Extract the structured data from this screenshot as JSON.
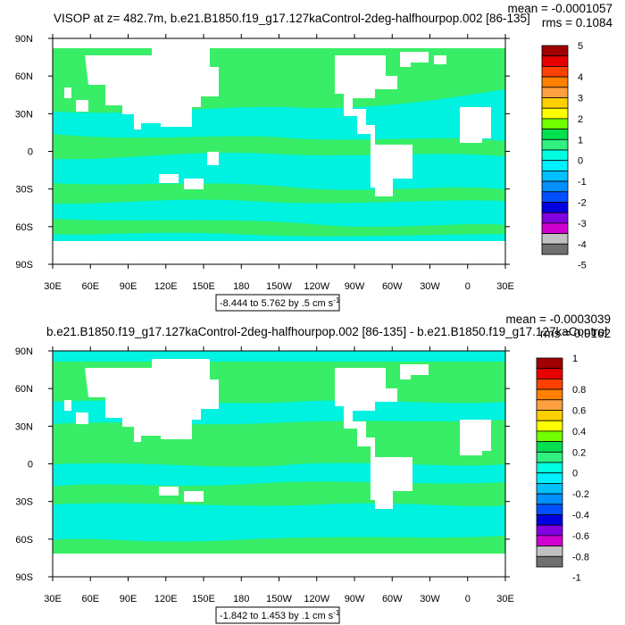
{
  "panels": [
    {
      "title": "VISOP at z= 482.7m, b.e21.B1850.f19_g17.127kaControl-2deg-halfhourpop.002 [86-135]",
      "mean_text": "mean = -0.0001057",
      "rms_text": "rms = 0.1084",
      "range_text": "-8.444 to 5.762 by .5 cm s",
      "unit_superscript": "-1",
      "colorbar_labels": [
        "5",
        "4",
        "3",
        "2",
        "1",
        "0",
        "-1",
        "-2",
        "-3",
        "-4",
        "-5"
      ]
    },
    {
      "title": "b.e21.B1850.f19_g17.127kaControl-2deg-halfhourpop.002 [86-135] - b.e21.B1850.f19_g17.127kaControl",
      "mean_text": "mean = -0.0003039",
      "rms_text": "rms = 0.9162",
      "range_text": "-1.842 to 1.453 by .1 cm s",
      "unit_superscript": "-1",
      "colorbar_labels": [
        "1",
        "0.8",
        "0.6",
        "0.4",
        "0.2",
        "0",
        "-0.2",
        "-0.4",
        "-0.6",
        "-0.8",
        "-1"
      ]
    }
  ],
  "axes": {
    "lon_labels": [
      "30E",
      "60E",
      "90E",
      "120E",
      "150E",
      "180",
      "150W",
      "120W",
      "90W",
      "60W",
      "30W",
      "0",
      "30E"
    ],
    "lat_labels": [
      "90N",
      "60N",
      "30N",
      "0",
      "30S",
      "60S",
      "90S"
    ]
  },
  "colorbar_colors": [
    "#a00000",
    "#e60000",
    "#ff4000",
    "#ff8000",
    "#ffa040",
    "#ffd000",
    "#ffff00",
    "#70ff00",
    "#00e050",
    "#30f080",
    "#00ffe0",
    "#00f0ff",
    "#00c0ff",
    "#0090ff",
    "#0050ff",
    "#0000e0",
    "#8000e0",
    "#d000d0",
    "#c0c0c0",
    "#707070"
  ],
  "field_colors": {
    "ocean_a": "#38ee66",
    "ocean_b": "#00f2e0",
    "land": "#ffffff"
  }
}
